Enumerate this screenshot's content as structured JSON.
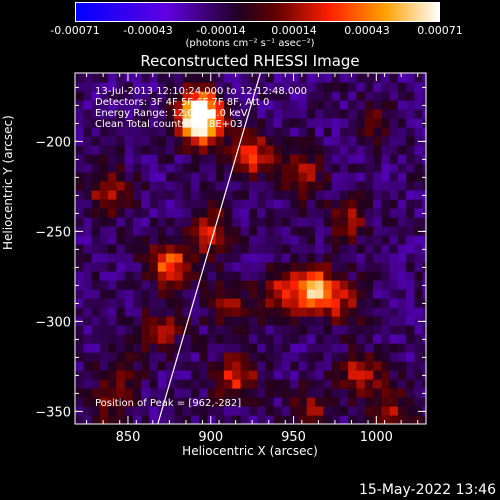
{
  "colorbar": {
    "ticks": [
      "-0.00071",
      "-0.00043",
      "-0.00014",
      "0.00014",
      "0.00043",
      "0.00071"
    ],
    "units": "(photons cm⁻² s⁻¹ asec⁻²)"
  },
  "title": "Reconstructed RHESSI Image",
  "info": {
    "line1": "13-Jul-2013 12:10:24.000 to 12:12:48.000",
    "line2": "Detectors: 3F 4F 5F 6F 7F 8F, Att 0",
    "line3": "Energy Range: 12.0 - 25.0 keV",
    "line4": "Clean     Total counts: 3.18E+03",
    "peak": "Position of Peak = [962,-282]"
  },
  "footer_date": "15-May-2022 13:46",
  "chart_data": {
    "type": "heatmap",
    "title": "Reconstructed RHESSI Image",
    "xlabel": "Heliocentric X (arcsec)",
    "ylabel": "Heliocentric Y (arcsec)",
    "xlim": [
      818,
      1030
    ],
    "ylim": [
      -357,
      -162
    ],
    "x_ticks": [
      850,
      900,
      950,
      1000
    ],
    "y_ticks": [
      -200,
      -250,
      -300,
      -350
    ],
    "x_tick_labels": [
      "850",
      "900",
      "950",
      "1000"
    ],
    "y_tick_labels": [
      "−200",
      "−250",
      "−300",
      "−350"
    ],
    "colorbar_range": [
      -0.00071,
      0.00071
    ],
    "peak_position": [
      962,
      -282
    ],
    "blobs": [
      {
        "x": 893,
        "y": -190,
        "value": 0.0007
      },
      {
        "x": 893,
        "y": -182,
        "value": 0.0006
      },
      {
        "x": 962,
        "y": -282,
        "value": 0.00071
      },
      {
        "x": 875,
        "y": -268,
        "value": 0.00055
      },
      {
        "x": 925,
        "y": -207,
        "value": 0.00045
      },
      {
        "x": 900,
        "y": -250,
        "value": 0.0004
      },
      {
        "x": 838,
        "y": -228,
        "value": 0.00035
      },
      {
        "x": 915,
        "y": -330,
        "value": 0.00045
      },
      {
        "x": 990,
        "y": -330,
        "value": 0.0004
      },
      {
        "x": 955,
        "y": -218,
        "value": 0.00035
      },
      {
        "x": 870,
        "y": -305,
        "value": 0.0003
      },
      {
        "x": 940,
        "y": -285,
        "value": 0.00035
      },
      {
        "x": 983,
        "y": -243,
        "value": 0.0003
      },
      {
        "x": 845,
        "y": -330,
        "value": 0.00025
      },
      {
        "x": 1010,
        "y": -350,
        "value": 0.0003
      },
      {
        "x": 960,
        "y": -350,
        "value": 0.0003
      },
      {
        "x": 910,
        "y": -290,
        "value": 0.0003
      },
      {
        "x": 840,
        "y": -350,
        "value": 0.0002
      },
      {
        "x": 1000,
        "y": -190,
        "value": 0.0002
      },
      {
        "x": 980,
        "y": -290,
        "value": 0.0003
      }
    ],
    "limb_line": {
      "x": [
        868,
        930
      ],
      "y": [
        -357,
        -162
      ]
    }
  }
}
